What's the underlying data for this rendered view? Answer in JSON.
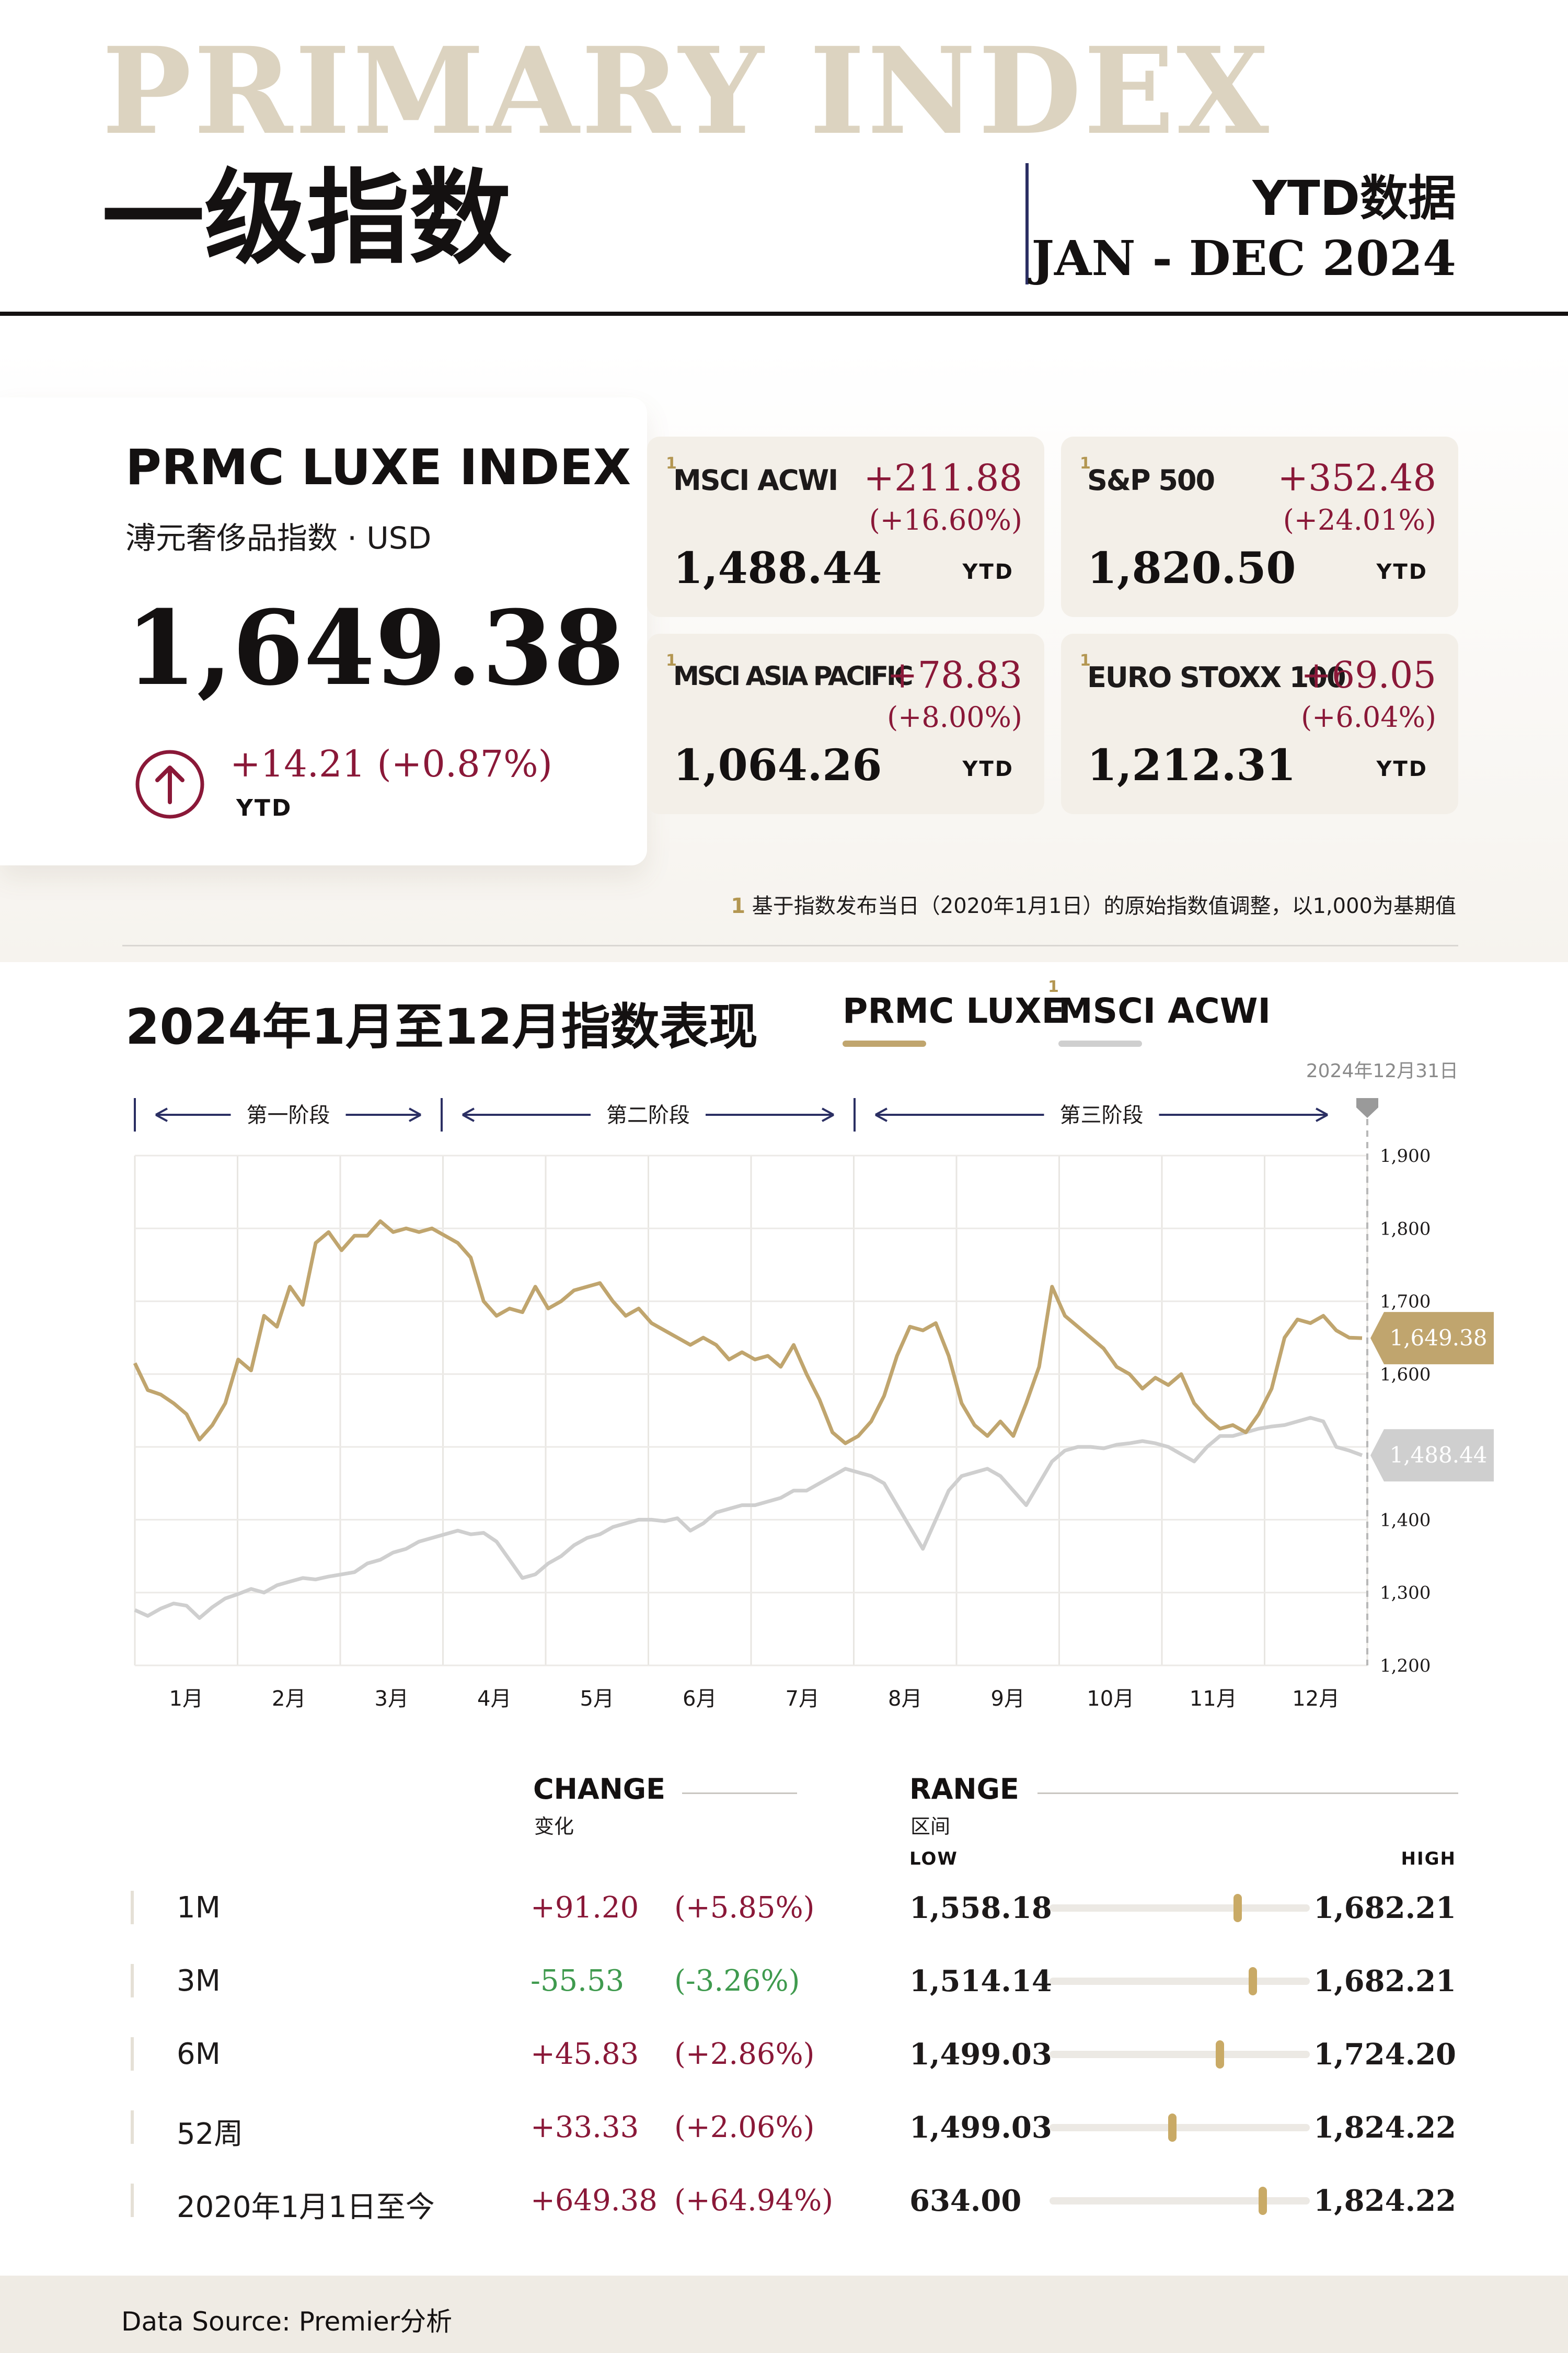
{
  "header": {
    "watermark": "PRIMARY INDEX",
    "title_cn": "一级指数",
    "period_label": "YTD数据",
    "period_range": "JAN - DEC 2024"
  },
  "hero": {
    "name": "PRMC LUXE INDEX",
    "subtitle": "溥元奢侈品指数 · USD",
    "value": "1,649.38",
    "change": "+14.21",
    "change_pct": "(+0.87%)",
    "change_tag": "YTD",
    "arrow_icon": "arrow-up-circle-icon"
  },
  "peers": [
    {
      "sup": "1",
      "name": "MSCI ACWI",
      "change": "+211.88",
      "change_pct": "(+16.60%)",
      "value": "1,488.44",
      "tag": "YTD"
    },
    {
      "sup": "1",
      "name": "S&P 500",
      "change": "+352.48",
      "change_pct": "(+24.01%)",
      "value": "1,820.50",
      "tag": "YTD"
    },
    {
      "sup": "1",
      "name": "MSCI ASIA PACIFIC",
      "change": "+78.83",
      "change_pct": "(+8.00%)",
      "value": "1,064.26",
      "tag": "YTD"
    },
    {
      "sup": "1",
      "name": "EURO STOXX 100",
      "change": "+69.05",
      "change_pct": "(+6.04%)",
      "value": "1,212.31",
      "tag": "YTD"
    }
  ],
  "footnote": {
    "mark": "1",
    "text": "基于指数发布当日（2020年1月1日）的原始指数值调整，以1,000为基期值"
  },
  "chart_section": {
    "title": "2024年1月至12月指数表现",
    "date_marker": "2024年12月31日",
    "phases": [
      "第一阶段",
      "第二阶段",
      "第三阶段"
    ]
  },
  "colors": {
    "gold": "#c0a56e",
    "grey": "#cfcfcf",
    "accent_red": "#8a1838",
    "accent_green": "#3f9a4e",
    "navy": "#2b2f63"
  },
  "chart_data": {
    "type": "line",
    "title": "2024年1月至12月指数表现",
    "xlabel": "",
    "ylabel": "",
    "x_ticks": [
      "1月",
      "2月",
      "3月",
      "4月",
      "5月",
      "6月",
      "7月",
      "8月",
      "9月",
      "10月",
      "11月",
      "12月"
    ],
    "y_ticks": [
      1200,
      1300,
      1400,
      1500,
      1600,
      1700,
      1800,
      1900
    ],
    "ylim": [
      1200,
      1900
    ],
    "grid": true,
    "legend": "top",
    "series": [
      {
        "name": "PRMC LUXE",
        "color": "#c0a56e",
        "end_label": "1,649.38",
        "values": [
          1615,
          1578,
          1572,
          1560,
          1545,
          1510,
          1530,
          1560,
          1620,
          1605,
          1680,
          1665,
          1720,
          1695,
          1780,
          1795,
          1770,
          1790,
          1790,
          1810,
          1795,
          1800,
          1795,
          1800,
          1790,
          1780,
          1760,
          1700,
          1680,
          1690,
          1685,
          1720,
          1690,
          1700,
          1715,
          1720,
          1725,
          1700,
          1680,
          1690,
          1670,
          1660,
          1650,
          1640,
          1650,
          1640,
          1620,
          1630,
          1620,
          1625,
          1610,
          1640,
          1600,
          1565,
          1520,
          1505,
          1515,
          1535,
          1570,
          1625,
          1665,
          1660,
          1670,
          1625,
          1560,
          1530,
          1515,
          1535,
          1515,
          1560,
          1610,
          1720,
          1680,
          1665,
          1650,
          1635,
          1610,
          1600,
          1580,
          1595,
          1585,
          1600,
          1560,
          1540,
          1525,
          1530,
          1520,
          1545,
          1580,
          1650,
          1675,
          1670,
          1680,
          1660,
          1650,
          1649.38
        ]
      },
      {
        "name": "MSCI ACWI",
        "sup": "1",
        "color": "#cfcfcf",
        "end_label": "1,488.44",
        "values": [
          1276,
          1268,
          1278,
          1285,
          1282,
          1265,
          1280,
          1292,
          1298,
          1305,
          1300,
          1310,
          1315,
          1320,
          1318,
          1322,
          1325,
          1328,
          1340,
          1345,
          1355,
          1360,
          1370,
          1375,
          1380,
          1385,
          1380,
          1382,
          1370,
          1345,
          1320,
          1325,
          1340,
          1350,
          1365,
          1375,
          1380,
          1390,
          1395,
          1400,
          1400,
          1398,
          1402,
          1385,
          1395,
          1410,
          1415,
          1420,
          1420,
          1425,
          1430,
          1440,
          1440,
          1450,
          1460,
          1470,
          1465,
          1460,
          1450,
          1420,
          1390,
          1360,
          1400,
          1440,
          1460,
          1465,
          1470,
          1460,
          1440,
          1420,
          1450,
          1480,
          1495,
          1500,
          1500,
          1498,
          1503,
          1505,
          1508,
          1505,
          1500,
          1490,
          1480,
          1500,
          1515,
          1515,
          1520,
          1525,
          1528,
          1530,
          1535,
          1540,
          1535,
          1500,
          1495,
          1488.44
        ]
      }
    ]
  },
  "table": {
    "change_header": "CHANGE",
    "change_header_cn": "变化",
    "range_header": "RANGE",
    "range_header_cn": "区间",
    "low_label": "LOW",
    "high_label": "HIGH",
    "rows": [
      {
        "label": "1M",
        "change": "+91.20",
        "change_pct": "(+5.85%)",
        "direction": "up",
        "low": "1,558.18",
        "high": "1,682.21",
        "position": 0.73
      },
      {
        "label": "3M",
        "change": "-55.53",
        "change_pct": "(-3.26%)",
        "direction": "down",
        "low": "1,514.14",
        "high": "1,682.21",
        "position": 0.79
      },
      {
        "label": "6M",
        "change": "+45.83",
        "change_pct": "(+2.86%)",
        "direction": "up",
        "low": "1,499.03",
        "high": "1,724.20",
        "position": 0.66
      },
      {
        "label": "52周",
        "change": "+33.33",
        "change_pct": "(+2.06%)",
        "direction": "up",
        "low": "1,499.03",
        "high": "1,824.22",
        "position": 0.47
      },
      {
        "label": "2020年1月1日至今",
        "change": "+649.38",
        "change_pct": "(+64.94%)",
        "direction": "up",
        "low": "634.00",
        "high": "1,824.22",
        "position": 0.83
      }
    ]
  },
  "footer": {
    "source": "Data Source: Premier分析"
  }
}
